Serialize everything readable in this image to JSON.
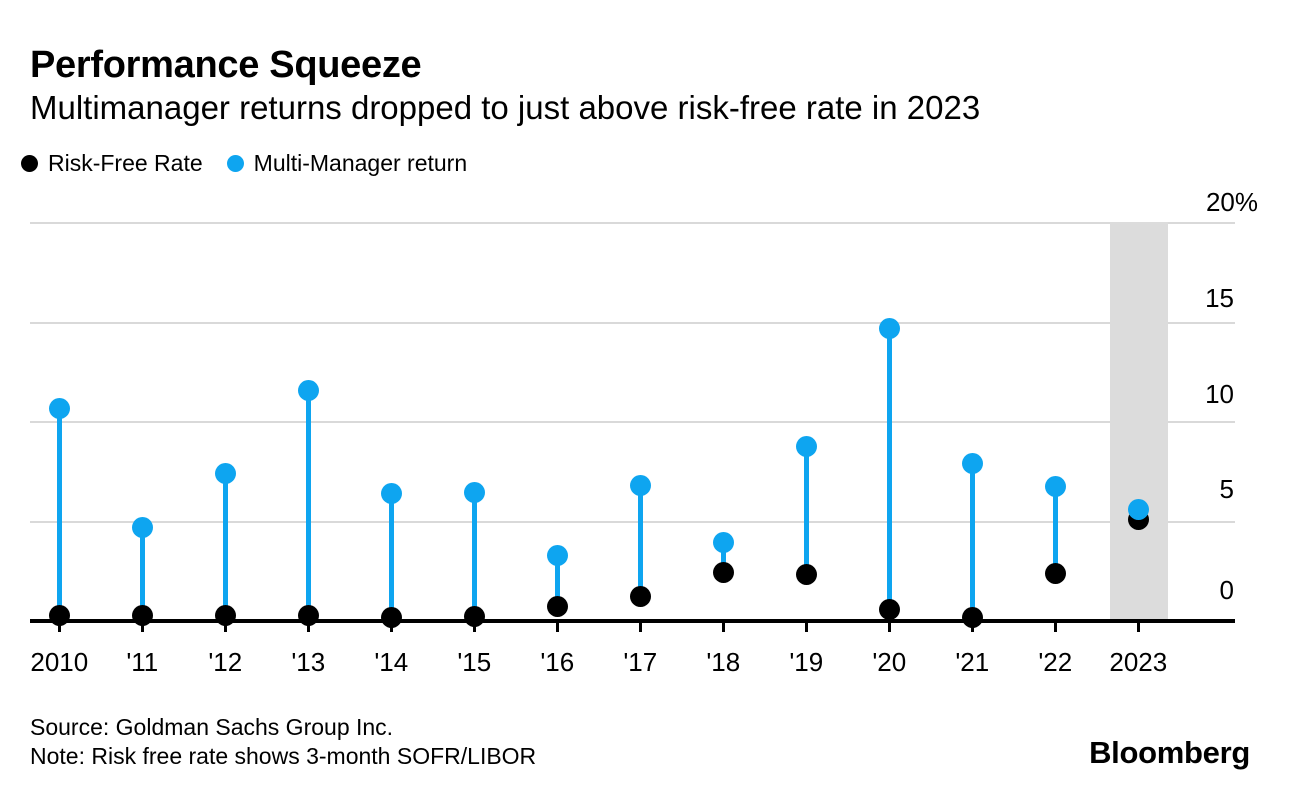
{
  "header": {
    "title": "Performance Squeeze",
    "subtitle": "Multimanager returns dropped to just above risk-free rate in 2023"
  },
  "legend": {
    "items": [
      {
        "label": "Risk-Free Rate",
        "color": "#000000"
      },
      {
        "label": "Multi-Manager return",
        "color": "#0ea5f0"
      }
    ]
  },
  "chart_data": {
    "type": "dumbbell",
    "categories": [
      "2010",
      "'11",
      "'12",
      "'13",
      "'14",
      "'15",
      "'16",
      "'17",
      "'18",
      "'19",
      "'20",
      "'21",
      "'22",
      "2023"
    ],
    "series": [
      {
        "name": "Risk-Free Rate",
        "color": "#000000",
        "values": [
          0.3,
          0.3,
          0.3,
          0.3,
          0.2,
          0.25,
          0.75,
          1.25,
          2.45,
          2.35,
          0.6,
          0.2,
          2.4,
          5.1
        ]
      },
      {
        "name": "Multi-Manager return",
        "color": "#0ea5f0",
        "values": [
          10.7,
          4.7,
          7.4,
          11.6,
          6.4,
          6.45,
          3.3,
          6.8,
          3.95,
          8.8,
          14.7,
          7.9,
          6.75,
          5.6
        ]
      }
    ],
    "connector_color": "#0ea5f0",
    "unit": "%",
    "ylim": [
      0,
      20
    ],
    "yticks": [
      0,
      5,
      10,
      15,
      20
    ],
    "ytick_labels": [
      "0",
      "5",
      "10",
      "15",
      "20%"
    ],
    "grid": true,
    "legend_position": "top-left",
    "highlight": {
      "category": "2023",
      "color": "#dcdcdc"
    }
  },
  "footer": {
    "source": "Source: Goldman Sachs Group Inc.",
    "note": "Note: Risk free rate shows 3-month SOFR/LIBOR",
    "brand": "Bloomberg"
  }
}
